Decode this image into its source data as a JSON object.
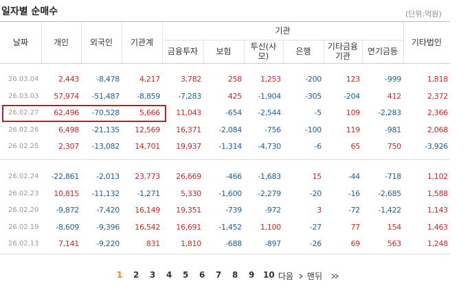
{
  "header": {
    "title": "일자별 순매수",
    "unit": "(단위:억원)"
  },
  "table": {
    "columns": [
      "날짜",
      "개인",
      "외국인",
      "기관계"
    ],
    "group": {
      "label": "기관",
      "columns": [
        "금융투자",
        "보험",
        "투신(사모)",
        "은행",
        "기타금융기관",
        "연기금등"
      ]
    },
    "last_column": "기타법인",
    "rows": [
      [
        "26.03.04",
        "2,443",
        "-8,478",
        "4,217",
        "3,782",
        "258",
        "1,253",
        "-200",
        "123",
        "-999",
        "1,818"
      ],
      [
        "26.03.03",
        "57,974",
        "-51,487",
        "-8,859",
        "-7,283",
        "425",
        "-1,904",
        "-305",
        "-204",
        "412",
        "2,372"
      ],
      [
        "26.02.27",
        "62,496",
        "-70,528",
        "5,666",
        "11,043",
        "-654",
        "-2,544",
        "-5",
        "109",
        "-2,283",
        "2,366"
      ],
      [
        "26.02.26",
        "6,498",
        "-21,135",
        "12,569",
        "16,371",
        "-2,084",
        "-756",
        "-100",
        "119",
        "-981",
        "2,068"
      ],
      [
        "26.02.25",
        "2,307",
        "-13,082",
        "14,701",
        "19,937",
        "-1,314",
        "-4,730",
        "-6",
        "65",
        "750",
        "-3,926"
      ],
      [
        "26.02.24",
        "-22,861",
        "-2,013",
        "23,773",
        "26,669",
        "-466",
        "-1,683",
        "15",
        "-44",
        "-718",
        "1,102"
      ],
      [
        "26.02.23",
        "10,815",
        "-11,132",
        "-1,271",
        "5,330",
        "-1,600",
        "-2,279",
        "-20",
        "-16",
        "-2,685",
        "1,588"
      ],
      [
        "26.02.20",
        "-9,872",
        "-7,420",
        "16,149",
        "19,351",
        "-739",
        "-972",
        "3",
        "-72",
        "-1,422",
        "1,143"
      ],
      [
        "26.02.19",
        "-8,609",
        "-9,396",
        "16,542",
        "16,691",
        "-1,452",
        "1,100",
        "-27",
        "77",
        "154",
        "1,463"
      ],
      [
        "26.02.13",
        "7,141",
        "-9,220",
        "831",
        "1,810",
        "-688",
        "-897",
        "-26",
        "69",
        "563",
        "1,248"
      ]
    ]
  },
  "pagination": {
    "pages": [
      "1",
      "2",
      "3",
      "4",
      "5",
      "6",
      "7",
      "8",
      "9",
      "10"
    ],
    "next": "다음",
    "last": "맨뒤"
  }
}
